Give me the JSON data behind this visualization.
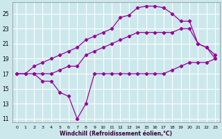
{
  "xlabel": "Windchill (Refroidissement éolien,°C)",
  "bg_color": "#cce8ec",
  "grid_color": "#ffffff",
  "line_color": "#990099",
  "xlim": [
    -0.5,
    23.5
  ],
  "ylim": [
    10.5,
    26.5
  ],
  "xticks": [
    0,
    1,
    2,
    3,
    4,
    5,
    6,
    7,
    8,
    9,
    10,
    11,
    12,
    13,
    14,
    15,
    16,
    17,
    18,
    19,
    20,
    21,
    22,
    23
  ],
  "yticks": [
    11,
    13,
    15,
    17,
    19,
    21,
    23,
    25
  ],
  "line1_x": [
    0,
    1,
    2,
    3,
    4,
    5,
    6,
    7,
    8,
    9,
    10,
    11,
    12,
    13,
    14,
    15,
    16,
    17,
    18,
    19,
    20,
    21,
    22,
    23
  ],
  "line1_y": [
    17,
    17,
    17,
    16,
    16,
    14.5,
    14,
    11,
    13,
    17,
    17,
    17,
    17,
    17,
    17,
    17,
    17,
    17,
    17.5,
    18,
    18.5,
    18.5,
    18.5,
    19
  ],
  "line2_x": [
    0,
    1,
    2,
    3,
    4,
    5,
    6,
    7,
    8,
    9,
    10,
    11,
    12,
    13,
    14,
    15,
    16,
    17,
    18,
    19,
    20,
    21,
    22,
    23
  ],
  "line2_y": [
    17,
    17,
    18,
    18.5,
    19,
    19.5,
    20,
    20.5,
    21.5,
    22,
    22.5,
    23,
    24.5,
    24.8,
    25.8,
    26,
    26,
    25.8,
    25,
    24,
    24,
    21,
    20.5,
    19
  ],
  "line3_x": [
    2,
    3,
    4,
    5,
    6,
    7,
    8,
    9,
    10,
    11,
    12,
    13,
    14,
    15,
    16,
    17,
    18,
    19,
    20,
    21,
    22,
    23
  ],
  "line3_y": [
    17,
    17,
    17,
    17.5,
    18,
    18,
    19.5,
    20,
    20.5,
    21,
    21.5,
    22,
    22.5,
    22.5,
    22.5,
    22.5,
    22.5,
    23,
    23,
    21,
    20.5,
    19.5
  ]
}
